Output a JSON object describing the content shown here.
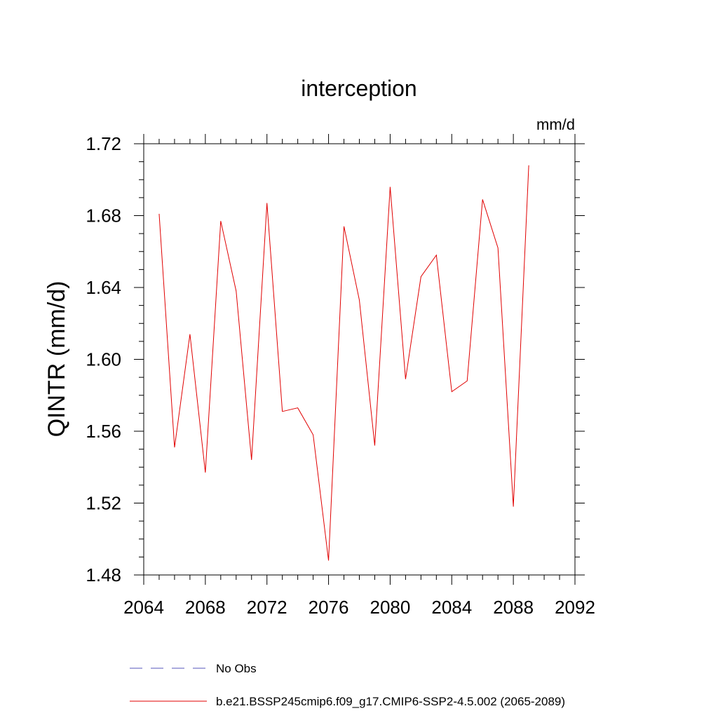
{
  "chart_data": {
    "type": "line",
    "title": "interception",
    "units_label": "mm/d",
    "xlabel": "",
    "ylabel": "QINTR  (mm/d)",
    "xlim": [
      2064,
      2092
    ],
    "ylim": [
      1.48,
      1.72
    ],
    "x_ticks": [
      "2064",
      "2068",
      "2072",
      "2076",
      "2080",
      "2084",
      "2088",
      "2092"
    ],
    "y_ticks": [
      "1.48",
      "1.52",
      "1.56",
      "1.60",
      "1.64",
      "1.68",
      "1.72"
    ],
    "x_minor_step": 1,
    "y_minor_step": 0.01,
    "grid": false,
    "legend_position": "bottom",
    "series": [
      {
        "name": "No Obs",
        "color": "#5555bb",
        "style": "dashed",
        "x": [],
        "values": []
      },
      {
        "name": "b.e21.BSSP245cmip6.f09_g17.CMIP6-SSP2-4.5.002 (2065-2089)",
        "color": "#e00000",
        "style": "solid",
        "x": [
          2065,
          2066,
          2067,
          2068,
          2069,
          2070,
          2071,
          2072,
          2073,
          2074,
          2075,
          2076,
          2077,
          2078,
          2079,
          2080,
          2081,
          2082,
          2083,
          2084,
          2085,
          2086,
          2087,
          2088,
          2089
        ],
        "values": [
          1.681,
          1.551,
          1.614,
          1.537,
          1.677,
          1.638,
          1.544,
          1.687,
          1.571,
          1.573,
          1.558,
          1.488,
          1.674,
          1.633,
          1.552,
          1.696,
          1.589,
          1.646,
          1.658,
          1.582,
          1.588,
          1.689,
          1.662,
          1.518,
          1.708
        ]
      }
    ]
  }
}
